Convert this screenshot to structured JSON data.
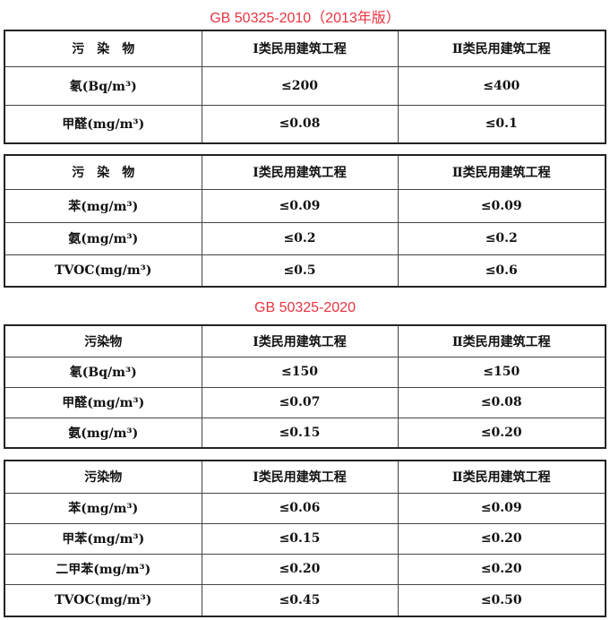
{
  "sections": [
    {
      "title": "GB 50325-2010（2013年版）",
      "tables": [
        {
          "header": [
            "污　染　物",
            "Ⅰ类民用建筑工程",
            "Ⅱ类民用建筑工程"
          ],
          "rows": [
            [
              "氡(Bq/m³)",
              "≤200",
              "≤400"
            ],
            [
              "甲醛(mg/m³)",
              "≤0.08",
              "≤0.1"
            ]
          ]
        },
        {
          "header": [
            "污　染　物",
            "Ⅰ类民用建筑工程",
            "Ⅱ类民用建筑工程"
          ],
          "rows": [
            [
              "苯(mg/m³)",
              "≤0.09",
              "≤0.09"
            ],
            [
              "氨(mg/m³)",
              "≤0.2",
              "≤0.2"
            ],
            [
              "TVOC(mg/m³)",
              "≤0.5",
              "≤0.6"
            ]
          ]
        }
      ]
    },
    {
      "title": "GB 50325-2020",
      "tables": [
        {
          "header": [
            "污染物",
            "Ⅰ类民用建筑工程",
            "Ⅱ类民用建筑工程"
          ],
          "rows": [
            [
              "氡(Bq/m³)",
              "≤150",
              "≤150"
            ],
            [
              "甲醛(mg/m³)",
              "≤0.07",
              "≤0.08"
            ],
            [
              "氨(mg/m³)",
              "≤0.15",
              "≤0.20"
            ]
          ]
        },
        {
          "header": [
            "污染物",
            "Ⅰ类民用建筑工程",
            "Ⅱ类民用建筑工程"
          ],
          "rows": [
            [
              "苯(mg/m³)",
              "≤0.06",
              "≤0.09"
            ],
            [
              "甲苯(mg/m³)",
              "≤0.15",
              "≤0.20"
            ],
            [
              "二甲苯(mg/m³)",
              "≤0.20",
              "≤0.20"
            ],
            [
              "TVOC(mg/m³)",
              "≤0.45",
              "≤0.50"
            ]
          ]
        }
      ]
    }
  ]
}
